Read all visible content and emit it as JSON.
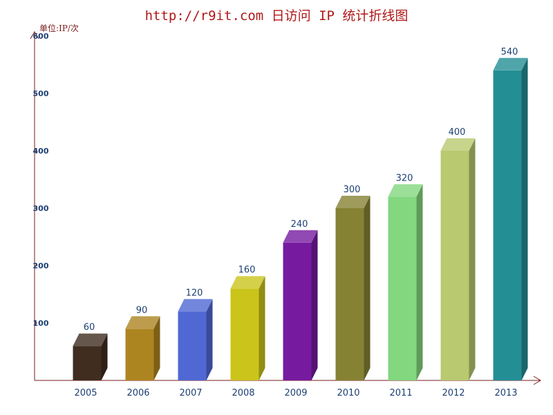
{
  "chart_data": {
    "type": "bar",
    "title": "http://r9it.com 日访问 IP 统计折线图",
    "unit_label": "单位:IP/次",
    "categories": [
      "2005",
      "2006",
      "2007",
      "2008",
      "2009",
      "2010",
      "2011",
      "2012",
      "2013"
    ],
    "values": [
      60,
      90,
      120,
      160,
      240,
      300,
      320,
      400,
      540
    ],
    "ylim": [
      0,
      600
    ],
    "yticks": [
      100,
      200,
      300,
      400,
      500,
      600
    ],
    "grid": false,
    "legend": "none",
    "three_d": true,
    "colors": [
      "#402d20",
      "#ad8520",
      "#4f68d3",
      "#cbc41b",
      "#761ba0",
      "#868234",
      "#82d77f",
      "#b8c96f",
      "#248e95"
    ]
  }
}
